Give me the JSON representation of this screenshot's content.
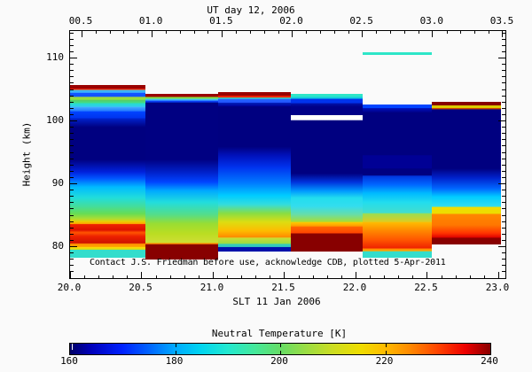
{
  "titles": {
    "top": "UT day 12, 2006",
    "bottom": "SLT 11 Jan 2006",
    "y": "Height (km)"
  },
  "annotation": "Contact J.S. Friedman before use, acknowledge CDB, plotted 5-Apr-2011",
  "axes": {
    "top_ticks": [
      {
        "label": "00.5",
        "ut": 0.5
      },
      {
        "label": "01.0",
        "ut": 1.0
      },
      {
        "label": "01.5",
        "ut": 1.5
      },
      {
        "label": "02.0",
        "ut": 2.0
      },
      {
        "label": "02.5",
        "ut": 2.5
      },
      {
        "label": "03.0",
        "ut": 3.0
      },
      {
        "label": "03.5",
        "ut": 3.5
      }
    ],
    "bottom_ticks": [
      {
        "label": "20.0",
        "slt": 20.0
      },
      {
        "label": "20.5",
        "slt": 20.5
      },
      {
        "label": "21.0",
        "slt": 21.0
      },
      {
        "label": "21.5",
        "slt": 21.5
      },
      {
        "label": "22.0",
        "slt": 22.0
      },
      {
        "label": "22.5",
        "slt": 22.5
      },
      {
        "label": "23.0",
        "slt": 23.0
      }
    ],
    "left_ticks": [
      {
        "label": "110",
        "km": 110
      },
      {
        "label": "100",
        "km": 100
      },
      {
        "label": "90",
        "km": 90
      },
      {
        "label": "80",
        "km": 80
      }
    ]
  },
  "colorbar": {
    "title": "Neutral Temperature [K]",
    "range_K": [
      160,
      240
    ],
    "tick_labels": [
      {
        "label": "160",
        "value": 160
      },
      {
        "label": "180",
        "value": 180
      },
      {
        "label": "200",
        "value": 200
      },
      {
        "label": "220",
        "value": 220
      },
      {
        "label": "240",
        "value": 240
      }
    ],
    "inner_tick_values": [
      180,
      200,
      220
    ],
    "stops": [
      [
        0.0,
        "#000066"
      ],
      [
        0.05,
        "#0000bb"
      ],
      [
        0.125,
        "#0022ff"
      ],
      [
        0.19,
        "#0066ff"
      ],
      [
        0.25,
        "#00aaff"
      ],
      [
        0.31,
        "#00d4f0"
      ],
      [
        0.375,
        "#22e8d0"
      ],
      [
        0.44,
        "#44e89a"
      ],
      [
        0.5,
        "#66dd66"
      ],
      [
        0.56,
        "#99dd44"
      ],
      [
        0.625,
        "#ccdd22"
      ],
      [
        0.69,
        "#eedd00"
      ],
      [
        0.75,
        "#ffbb00"
      ],
      [
        0.81,
        "#ff8800"
      ],
      [
        0.875,
        "#ff4400"
      ],
      [
        0.94,
        "#ee0000"
      ],
      [
        1.0,
        "#880000"
      ]
    ]
  },
  "chart_data": {
    "type": "heatmap",
    "title": "UT day 12, 2006",
    "xlabel_bottom": "SLT 11 Jan 2006",
    "xlabel_top": "UT day 12, 2006",
    "ylabel": "Height (km)",
    "x_range_slt": [
      20.0,
      23.05
    ],
    "ut_offset_hours": 4.45,
    "y_range_km": [
      74.9,
      114.2
    ],
    "y_ticks_km": [
      80,
      90,
      100,
      110
    ],
    "value_label": "Neutral Temperature [K]",
    "value_range_K": [
      160,
      240
    ],
    "missing_data_color": "#ffffff",
    "columns": [
      {
        "slt": [
          20.0,
          20.528
        ],
        "top_km": 105.6,
        "bottom_km": 78.2,
        "approx_temps_K": {
          "80": 228,
          "82.5": 234,
          "85": 205,
          "87.5": 192,
          "90": 188,
          "95": 162,
          "100": 168,
          "103": 210,
          "105": 234
        },
        "stops": [
          [
            105.6,
            "#990000"
          ],
          [
            105.05,
            "#990000"
          ],
          [
            105.0,
            "#ee2200"
          ],
          [
            104.85,
            "#ee2200"
          ],
          [
            104.8,
            "#44ccee"
          ],
          [
            104.35,
            "#3399ff"
          ],
          [
            104.3,
            "#1155ff"
          ],
          [
            103.75,
            "#1155ff"
          ],
          [
            103.7,
            "#aadd33"
          ],
          [
            103.25,
            "#88dd44"
          ],
          [
            103.2,
            "#55cc66"
          ],
          [
            102.75,
            "#44dd88"
          ],
          [
            102.7,
            "#22ddcc"
          ],
          [
            102.15,
            "#33ccee"
          ],
          [
            102.1,
            "#44aaff"
          ],
          [
            101.45,
            "#2277ff"
          ],
          [
            101.4,
            "#0044ff"
          ],
          [
            100.35,
            "#0033ee"
          ],
          [
            100.3,
            "#0022cc"
          ],
          [
            98.9,
            "#000080"
          ],
          [
            93.8,
            "#000080"
          ],
          [
            91.8,
            "#0022dd"
          ],
          [
            90.8,
            "#0055ff"
          ],
          [
            89.4,
            "#00bbff"
          ],
          [
            87.7,
            "#22ddda"
          ],
          [
            86.3,
            "#44dd99"
          ],
          [
            85.2,
            "#66dd55"
          ],
          [
            84.4,
            "#aadd33"
          ],
          [
            83.9,
            "#eecc00"
          ],
          [
            83.55,
            "#ff9900"
          ],
          [
            83.5,
            "#ee2200"
          ],
          [
            82.6,
            "#dd1100"
          ],
          [
            82.2,
            "#ff5500"
          ],
          [
            81.6,
            "#ee2200"
          ],
          [
            80.5,
            "#cc1100"
          ],
          [
            80.45,
            "#ff8800"
          ],
          [
            79.9,
            "#ffaa00"
          ],
          [
            79.85,
            "#ffdd00"
          ],
          [
            79.5,
            "#ccdd22"
          ],
          [
            79.45,
            "#33ddcc"
          ],
          [
            78.2,
            "#33ddcc"
          ]
        ]
      },
      {
        "slt": [
          20.528,
          21.037
        ],
        "top_km": 104.2,
        "bottom_km": 77.9,
        "approx_temps_K": {
          "78.5": 240,
          "81": 212,
          "84": 208,
          "87": 190,
          "90": 178,
          "95": 162,
          "100": 162,
          "103.9": 240
        },
        "stops": [
          [
            104.2,
            "#990000"
          ],
          [
            103.75,
            "#990000"
          ],
          [
            103.7,
            "#88dd44"
          ],
          [
            103.45,
            "#88dd44"
          ],
          [
            103.4,
            "#33ccee"
          ],
          [
            103.15,
            "#44aaff"
          ],
          [
            103.1,
            "#1144ff"
          ],
          [
            102.85,
            "#0033dd"
          ],
          [
            102.8,
            "#000082"
          ],
          [
            93.8,
            "#000082"
          ],
          [
            91.7,
            "#0022cc"
          ],
          [
            90.2,
            "#0044ff"
          ],
          [
            88.8,
            "#00aaff"
          ],
          [
            87.0,
            "#22dddd"
          ],
          [
            85.0,
            "#55dd88"
          ],
          [
            83.6,
            "#99dd33"
          ],
          [
            82.0,
            "#bbdd22"
          ],
          [
            80.7,
            "#ccdd33"
          ],
          [
            80.55,
            "#ccdd33"
          ],
          [
            80.5,
            "#ff8800"
          ],
          [
            80.35,
            "#ff8800"
          ],
          [
            80.3,
            "#880000"
          ],
          [
            77.9,
            "#880000"
          ]
        ]
      },
      {
        "slt": [
          21.037,
          21.546
        ],
        "top_km": 104.5,
        "bottom_km": 79.1,
        "approx_temps_K": {
          "79.5": 165,
          "80.5": 208,
          "82": 222,
          "84": 213,
          "87": 192,
          "90": 180,
          "94": 172,
          "98": 162,
          "104.2": 240
        },
        "stops": [
          [
            104.5,
            "#990000"
          ],
          [
            103.95,
            "#990000"
          ],
          [
            103.9,
            "#ee2200"
          ],
          [
            103.65,
            "#ee2200"
          ],
          [
            103.6,
            "#33ddcc"
          ],
          [
            103.45,
            "#33ddcc"
          ],
          [
            103.4,
            "#2266ff"
          ],
          [
            102.85,
            "#2255ff"
          ],
          [
            102.8,
            "#0022bb"
          ],
          [
            102.25,
            "#000099"
          ],
          [
            102.2,
            "#000080"
          ],
          [
            95.8,
            "#000080"
          ],
          [
            94.4,
            "#0011bb"
          ],
          [
            92.5,
            "#0033ee"
          ],
          [
            90.1,
            "#0077ff"
          ],
          [
            88.0,
            "#00ccff"
          ],
          [
            86.6,
            "#33dddd"
          ],
          [
            85.2,
            "#88dd44"
          ],
          [
            83.8,
            "#dddd11"
          ],
          [
            82.4,
            "#ffbb00"
          ],
          [
            81.35,
            "#ff8800"
          ],
          [
            81.3,
            "#ccdd33"
          ],
          [
            80.35,
            "#99dd44"
          ],
          [
            80.3,
            "#33ccbb"
          ],
          [
            79.85,
            "#33ccbb"
          ],
          [
            79.8,
            "#0011aa"
          ],
          [
            79.1,
            "#0011aa"
          ]
        ]
      },
      {
        "slt": [
          21.546,
          22.05
        ],
        "top_km": 104.2,
        "bottom_km": 79.2,
        "missing_band_km": [
          100.8,
          100.0
        ],
        "approx_temps_K": {
          "80": 240,
          "83": 226,
          "85": 202,
          "88": 190,
          "91": 168,
          "95": 162,
          "102": 164,
          "104": 190
        },
        "stops": [
          [
            104.2,
            "#2ee6c8"
          ],
          [
            103.75,
            "#2ee6c8"
          ],
          [
            103.7,
            "#11ccdd"
          ],
          [
            103.45,
            "#11ccdd"
          ],
          [
            103.4,
            "#0033ee"
          ],
          [
            102.75,
            "#0033ee"
          ],
          [
            102.7,
            "#0011aa"
          ],
          [
            102.15,
            "#000088"
          ],
          [
            100.85,
            "#000088"
          ],
          [
            100.8,
            "#ffffff"
          ],
          [
            100.05,
            "#ffffff"
          ],
          [
            100.0,
            "#000080"
          ],
          [
            91.6,
            "#000080"
          ],
          [
            90.2,
            "#0033dd"
          ],
          [
            88.8,
            "#0099ff"
          ],
          [
            87.7,
            "#22ddee"
          ],
          [
            86.4,
            "#33ddee"
          ],
          [
            85.1,
            "#66ddaa"
          ],
          [
            83.9,
            "#aadd33"
          ],
          [
            83.85,
            "#ffcc00"
          ],
          [
            83.2,
            "#ff9900"
          ],
          [
            83.15,
            "#ff6600"
          ],
          [
            82.1,
            "#ff4400"
          ],
          [
            82.05,
            "#880000"
          ],
          [
            79.2,
            "#880000"
          ]
        ]
      },
      {
        "slt": [
          22.05,
          22.534
        ],
        "top_km": 102.5,
        "bottom_km": 78.2,
        "approx_temps_K": {
          "78.7": 190,
          "80": 232,
          "82": 224,
          "84": 214,
          "86": 195,
          "89": 175,
          "93": 162,
          "98": 162,
          "102": 172
        },
        "stops": [
          [
            102.5,
            "#0044ff"
          ],
          [
            101.95,
            "#0044ff"
          ],
          [
            101.9,
            "#0011bb"
          ],
          [
            101.25,
            "#000088"
          ],
          [
            101.2,
            "#000080"
          ],
          [
            94.5,
            "#000080"
          ],
          [
            94.4,
            "#000095"
          ],
          [
            92.4,
            "#000095"
          ],
          [
            92.3,
            "#000080"
          ],
          [
            91.25,
            "#000080"
          ],
          [
            91.2,
            "#0033dd"
          ],
          [
            89.8,
            "#0066ff"
          ],
          [
            88.4,
            "#00bbff"
          ],
          [
            87.0,
            "#22ddee"
          ],
          [
            85.3,
            "#44ddcc"
          ],
          [
            85.2,
            "#99dd55"
          ],
          [
            83.9,
            "#ddcc22"
          ],
          [
            83.8,
            "#ffbb00"
          ],
          [
            82.5,
            "#ff8800"
          ],
          [
            81.0,
            "#ff5500"
          ],
          [
            79.7,
            "#ee2200"
          ],
          [
            79.65,
            "#ff8800"
          ],
          [
            79.25,
            "#ffaa00"
          ],
          [
            79.2,
            "#33ddcc"
          ],
          [
            78.2,
            "#33ddcc"
          ]
        ]
      },
      {
        "slt": [
          22.534,
          23.019
        ],
        "top_km": 103.0,
        "bottom_km": 80.3,
        "approx_temps_K": {
          "80.8": 240,
          "82": 232,
          "84": 222,
          "85.7": 213,
          "87": 192,
          "90": 176,
          "95": 162,
          "100": 162,
          "102.2": 212,
          "102.7": 240
        },
        "stops": [
          [
            103.0,
            "#880000"
          ],
          [
            102.45,
            "#880000"
          ],
          [
            102.4,
            "#ddcc00"
          ],
          [
            102.05,
            "#ddcc00"
          ],
          [
            102.0,
            "#cc4400"
          ],
          [
            101.85,
            "#cc4400"
          ],
          [
            101.8,
            "#000080"
          ],
          [
            92.4,
            "#000080"
          ],
          [
            90.9,
            "#0022cc"
          ],
          [
            89.2,
            "#0066ff"
          ],
          [
            87.9,
            "#00ccff"
          ],
          [
            86.3,
            "#33ddee"
          ],
          [
            86.25,
            "#eedd00"
          ],
          [
            85.2,
            "#eedd00"
          ],
          [
            85.15,
            "#ff8800"
          ],
          [
            83.4,
            "#ff7700"
          ],
          [
            82.1,
            "#ff3300"
          ],
          [
            81.4,
            "#dd0000"
          ],
          [
            81.35,
            "#880000"
          ],
          [
            80.3,
            "#880000"
          ]
        ]
      }
    ],
    "segments": [
      {
        "slt": [
          22.05,
          22.534
        ],
        "km": [
          110.85,
          110.45
        ],
        "color": "#2ee6c8",
        "approx_temp_K": 190
      }
    ]
  }
}
